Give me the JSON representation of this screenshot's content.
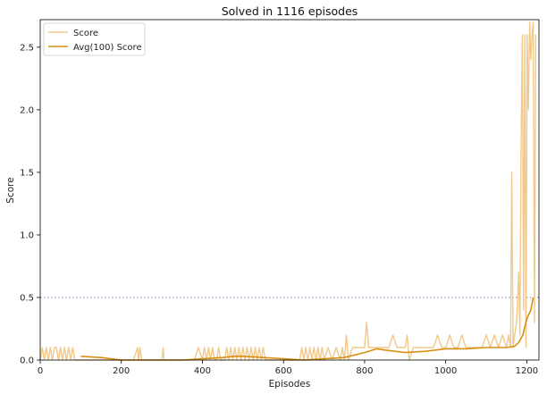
{
  "chart_data": {
    "type": "line",
    "title": "Solved in 1116 episodes",
    "xlabel": "Episodes",
    "ylabel": "Score",
    "xlim": [
      0,
      1230
    ],
    "ylim": [
      0,
      2.72
    ],
    "x_ticks": [
      0,
      200,
      400,
      600,
      800,
      1000,
      1200
    ],
    "x_tick_labels": [
      "0",
      "200",
      "400",
      "600",
      "800",
      "1000",
      "1200"
    ],
    "y_ticks": [
      0.0,
      0.5,
      1.0,
      1.5,
      2.0,
      2.5
    ],
    "y_tick_labels": [
      "0.0",
      "0.5",
      "1.0",
      "1.5",
      "2.0",
      "2.5"
    ],
    "grid": false,
    "legend_position": "top-left",
    "reference_line": {
      "y": 0.5,
      "style": "dotted",
      "color": "#8a8ad0"
    },
    "series": [
      {
        "name": "Score",
        "color": "#f2c98a",
        "x": [
          0,
          5,
          10,
          15,
          20,
          25,
          30,
          35,
          40,
          45,
          50,
          55,
          60,
          65,
          70,
          75,
          80,
          85,
          90,
          95,
          100,
          110,
          120,
          130,
          140,
          150,
          160,
          170,
          180,
          190,
          200,
          210,
          220,
          230,
          240,
          243,
          246,
          250,
          260,
          270,
          280,
          290,
          300,
          303,
          306,
          310,
          320,
          330,
          340,
          345,
          350,
          360,
          370,
          380,
          390,
          400,
          405,
          410,
          415,
          420,
          425,
          430,
          435,
          440,
          445,
          450,
          455,
          460,
          465,
          470,
          475,
          480,
          485,
          490,
          495,
          500,
          505,
          510,
          515,
          520,
          525,
          530,
          535,
          540,
          545,
          550,
          555,
          560,
          570,
          580,
          590,
          600,
          610,
          620,
          630,
          640,
          645,
          650,
          655,
          660,
          665,
          670,
          675,
          680,
          685,
          690,
          695,
          700,
          710,
          720,
          730,
          740,
          745,
          750,
          755,
          760,
          770,
          780,
          790,
          800,
          805,
          810,
          820,
          830,
          840,
          850,
          860,
          870,
          880,
          890,
          900,
          905,
          910,
          920,
          930,
          940,
          950,
          960,
          970,
          980,
          990,
          1000,
          1010,
          1020,
          1030,
          1040,
          1050,
          1060,
          1070,
          1080,
          1090,
          1100,
          1110,
          1120,
          1130,
          1140,
          1150,
          1155,
          1160,
          1163,
          1166,
          1170,
          1175,
          1180,
          1183,
          1186,
          1189,
          1192,
          1195,
          1198,
          1201,
          1204,
          1207,
          1210,
          1213,
          1216,
          1219,
          1222
        ],
        "values": [
          0.0,
          0.1,
          0.0,
          0.1,
          0.0,
          0.1,
          0.0,
          0.1,
          0.1,
          0.0,
          0.1,
          0.0,
          0.1,
          0.0,
          0.1,
          0.0,
          0.1,
          0.0,
          0.0,
          0.0,
          0.0,
          0.0,
          0.0,
          0.0,
          0.0,
          0.0,
          0.0,
          0.0,
          0.0,
          0.0,
          0.0,
          0.0,
          0.0,
          0.0,
          0.1,
          0.0,
          0.1,
          0.0,
          0.0,
          0.0,
          0.0,
          0.0,
          0.0,
          0.1,
          0.0,
          0.0,
          0.0,
          0.0,
          0.0,
          0.0,
          0.0,
          0.0,
          0.0,
          0.0,
          0.1,
          0.0,
          0.1,
          0.0,
          0.1,
          0.0,
          0.1,
          0.0,
          0.0,
          0.1,
          0.0,
          0.0,
          0.0,
          0.1,
          0.0,
          0.1,
          0.0,
          0.1,
          0.0,
          0.1,
          0.0,
          0.1,
          0.0,
          0.1,
          0.0,
          0.1,
          0.0,
          0.1,
          0.0,
          0.1,
          0.0,
          0.1,
          0.0,
          0.0,
          0.0,
          0.0,
          0.0,
          0.0,
          0.0,
          0.0,
          0.0,
          0.0,
          0.1,
          0.0,
          0.1,
          0.0,
          0.1,
          0.0,
          0.1,
          0.0,
          0.1,
          0.0,
          0.1,
          0.0,
          0.1,
          0.0,
          0.1,
          0.0,
          0.1,
          0.0,
          0.2,
          0.0,
          0.1,
          0.1,
          0.1,
          0.1,
          0.3,
          0.1,
          0.1,
          0.1,
          0.1,
          0.1,
          0.1,
          0.2,
          0.1,
          0.1,
          0.1,
          0.2,
          0.0,
          0.1,
          0.1,
          0.1,
          0.1,
          0.1,
          0.1,
          0.2,
          0.1,
          0.1,
          0.2,
          0.1,
          0.1,
          0.2,
          0.1,
          0.1,
          0.1,
          0.1,
          0.1,
          0.2,
          0.1,
          0.2,
          0.1,
          0.2,
          0.1,
          0.2,
          0.1,
          1.5,
          0.1,
          0.2,
          0.3,
          0.7,
          0.2,
          1.7,
          2.6,
          0.4,
          2.6,
          0.1,
          2.6,
          2.0,
          2.7,
          2.4,
          2.6,
          2.7,
          0.3,
          2.6
        ]
      },
      {
        "name": "Avg(100) Score",
        "color": "#d98f14",
        "x": [
          100,
          150,
          200,
          250,
          300,
          350,
          400,
          450,
          480,
          500,
          550,
          600,
          650,
          700,
          750,
          800,
          830,
          850,
          900,
          950,
          1000,
          1050,
          1100,
          1150,
          1170,
          1180,
          1190,
          1200,
          1210,
          1216
        ],
        "values": [
          0.03,
          0.02,
          0.0,
          0.0,
          0.0,
          0.0,
          0.01,
          0.02,
          0.03,
          0.03,
          0.02,
          0.01,
          0.0,
          0.01,
          0.02,
          0.06,
          0.09,
          0.08,
          0.06,
          0.07,
          0.09,
          0.09,
          0.1,
          0.1,
          0.11,
          0.14,
          0.2,
          0.33,
          0.4,
          0.5
        ]
      }
    ]
  }
}
